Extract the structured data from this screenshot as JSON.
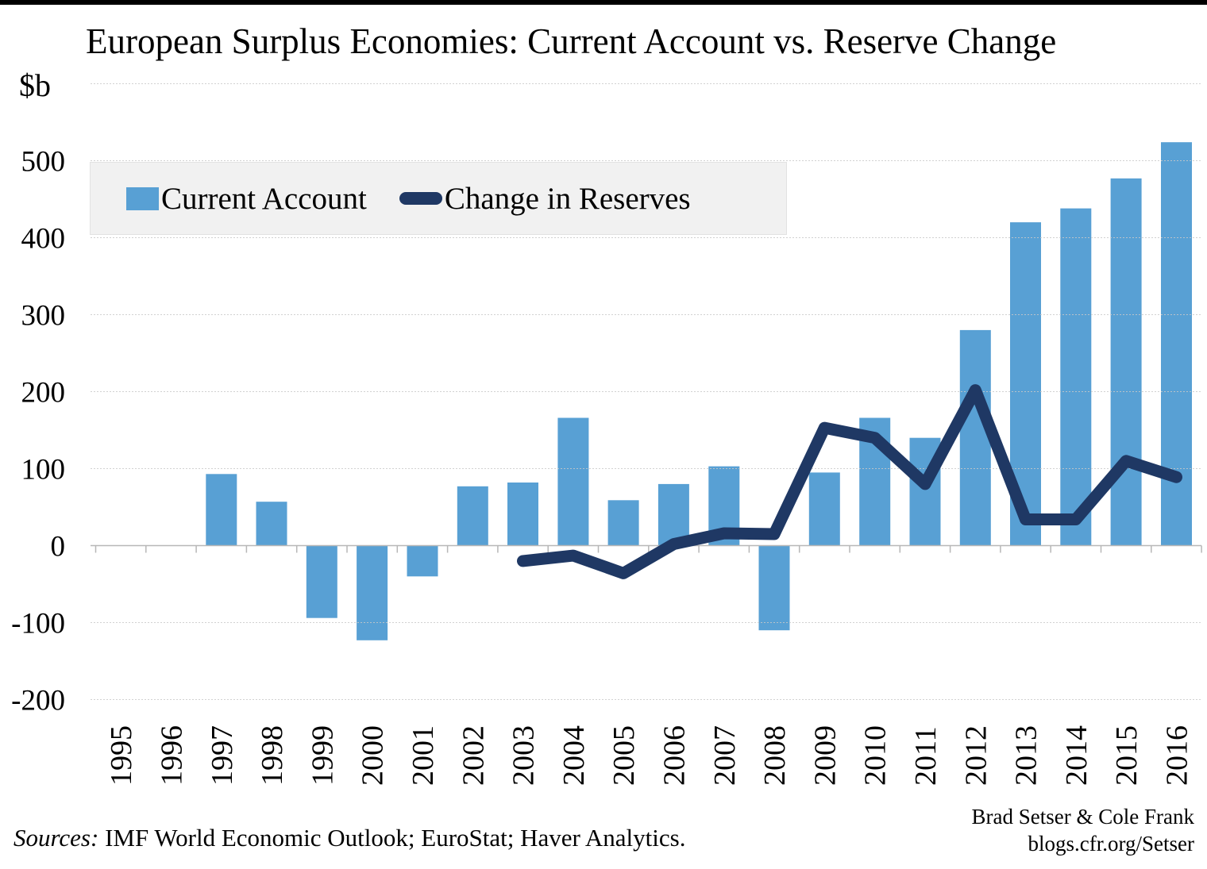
{
  "chart": {
    "title": "European Surplus Economies: Current Account vs. Reserve Change",
    "unit_label": "$b",
    "legend": {
      "items": [
        {
          "label": "Current Account",
          "marker": "bar-swatch"
        },
        {
          "label": "Change in Reserves",
          "marker": "line-swatch"
        }
      ]
    },
    "sources": {
      "prefix": "Sources:",
      "text": " IMF World Economic Outlook; EuroStat; Haver Analytics."
    },
    "attribution": {
      "line1": "Brad Setser & Cole Frank",
      "line2": "blogs.cfr.org/Setser"
    },
    "colors": {
      "bar": "#58a0d4",
      "line": "#1f3864",
      "gridline": "#c9c9c9",
      "zero_axis": "#b7b7b7",
      "legend_bg": "#f1f1f1",
      "top_border": "#000000"
    }
  },
  "chart_data": {
    "type": "bar+line",
    "title": "European Surplus Economies: Current Account vs. Reserve Change",
    "ylabel": "$b",
    "xlabel": "",
    "categories": [
      "1995",
      "1996",
      "1997",
      "1998",
      "1999",
      "2000",
      "2001",
      "2002",
      "2003",
      "2004",
      "2005",
      "2006",
      "2007",
      "2008",
      "2009",
      "2010",
      "2011",
      "2012",
      "2013",
      "2014",
      "2015",
      "2016"
    ],
    "series": [
      {
        "name": "Current Account",
        "kind": "bar",
        "color": "#58a0d4",
        "values": [
          null,
          null,
          93,
          57,
          -94,
          -123,
          -40,
          77,
          82,
          166,
          59,
          80,
          103,
          -110,
          95,
          166,
          140,
          280,
          420,
          438,
          477,
          524
        ]
      },
      {
        "name": "Change in Reserves",
        "kind": "line",
        "color": "#1f3864",
        "values": [
          null,
          null,
          null,
          null,
          null,
          null,
          null,
          null,
          -20,
          -13,
          -36,
          2,
          16,
          15,
          153,
          140,
          80,
          202,
          34,
          34,
          110,
          89
        ]
      }
    ],
    "yticks": [
      500,
      400,
      300,
      200,
      100,
      0,
      -100,
      -200
    ],
    "grid_values": [
      600,
      500,
      400,
      300,
      200,
      100,
      -100,
      -200
    ],
    "ylim": [
      -250,
      600
    ],
    "grid": true,
    "legend_position": "top-left"
  }
}
